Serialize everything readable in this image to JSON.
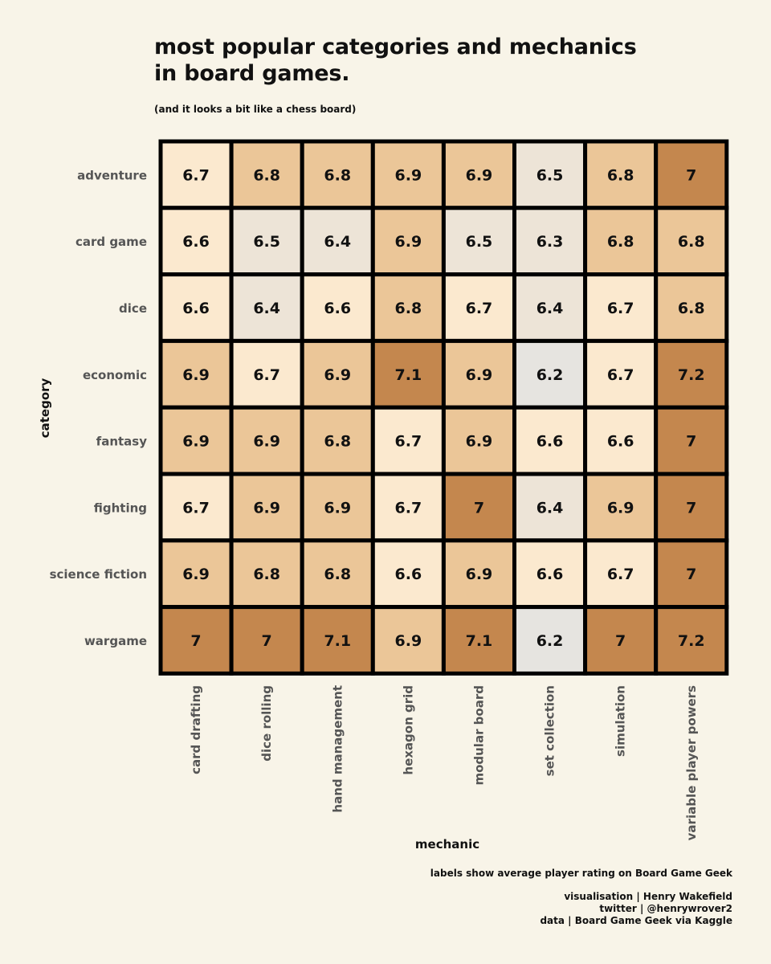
{
  "title_line1": "most popular categories and mechanics",
  "title_line2": "in board games.",
  "subtitle": "(and it looks a bit like a chess board)",
  "caption": {
    "note": "labels show average player rating on Board Game Geek",
    "credit1": "visualisation | Henry Wakefield",
    "credit2": "twitter | @henrywrover2",
    "credit3": "data | Board Game Geek via Kaggle"
  },
  "chart_data": {
    "type": "heatmap",
    "xlabel": "mechanic",
    "ylabel": "category",
    "x": [
      "card drafting",
      "dice rolling",
      "hand management",
      "hexagon grid",
      "modular board",
      "set collection",
      "simulation",
      "variable player powers"
    ],
    "y": [
      "adventure",
      "card game",
      "dice",
      "economic",
      "fantasy",
      "fighting",
      "science fiction",
      "wargame"
    ],
    "values": [
      [
        6.7,
        6.8,
        6.8,
        6.9,
        6.9,
        6.5,
        6.8,
        7
      ],
      [
        6.6,
        6.5,
        6.4,
        6.9,
        6.5,
        6.3,
        6.8,
        6.8
      ],
      [
        6.6,
        6.4,
        6.6,
        6.8,
        6.7,
        6.4,
        6.7,
        6.8
      ],
      [
        6.9,
        6.7,
        6.9,
        7.1,
        6.9,
        6.2,
        6.7,
        7.2
      ],
      [
        6.9,
        6.9,
        6.8,
        6.7,
        6.9,
        6.6,
        6.6,
        7
      ],
      [
        6.7,
        6.9,
        6.9,
        6.7,
        7,
        6.4,
        6.9,
        7
      ],
      [
        6.9,
        6.8,
        6.8,
        6.6,
        6.9,
        6.6,
        6.7,
        7
      ],
      [
        7,
        7,
        7.1,
        6.9,
        7.1,
        6.2,
        7,
        7.2
      ]
    ],
    "color_scale": [
      "#e6e4e0",
      "#ede4d7",
      "#fbe9cf",
      "#ebc698",
      "#c4874e"
    ],
    "cell_border": "#000000"
  }
}
